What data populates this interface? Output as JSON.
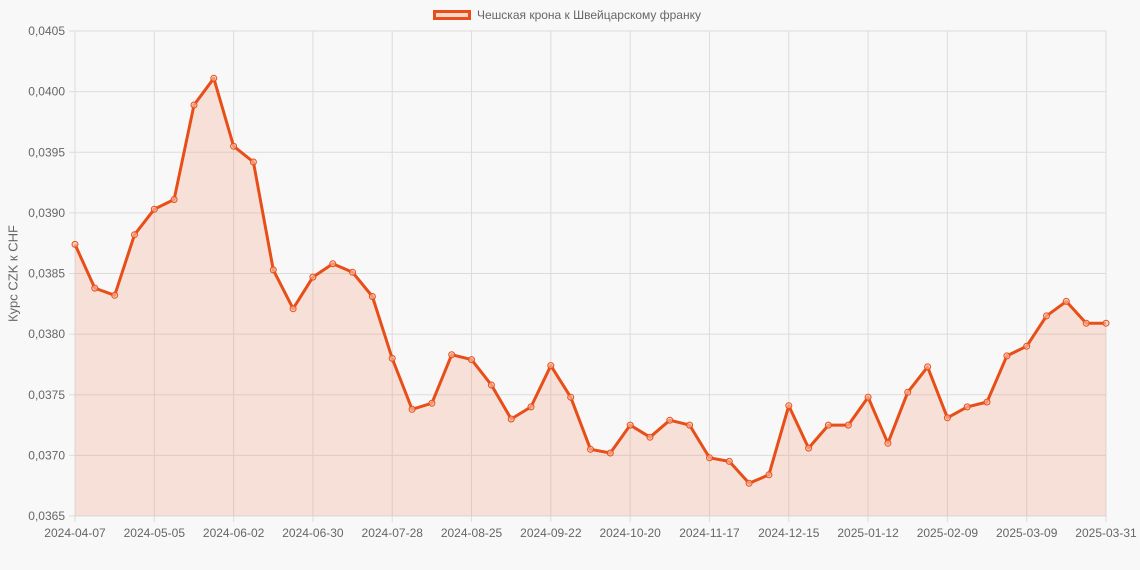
{
  "legend": {
    "label": "Чешская крона к Швейцарскому франку",
    "color": "#e84e17",
    "fill": "rgba(240,120,70,0.2)"
  },
  "chart_data": {
    "type": "line",
    "title": "",
    "xlabel": "",
    "ylabel": "Курс CZK к CHF",
    "ylim": [
      0.0365,
      0.0405
    ],
    "yticks": [
      "0,0405",
      "0,0400",
      "0,0395",
      "0,0390",
      "0,0385",
      "0,0380",
      "0,0375",
      "0,0370",
      "0,0365"
    ],
    "xtick_labels": [
      "2024-04-07",
      "2024-05-05",
      "2024-06-02",
      "2024-06-30",
      "2024-07-28",
      "2024-08-25",
      "2024-09-22",
      "2024-10-20",
      "2024-11-17",
      "2024-12-15",
      "2025-01-12",
      "2025-02-09",
      "2025-03-09",
      "2025-03-31"
    ],
    "xtick_indices": [
      0,
      4,
      8,
      12,
      16,
      20,
      24,
      28,
      32,
      36,
      40,
      44,
      48,
      52
    ],
    "grid": true,
    "legend_position": "top",
    "series": [
      {
        "name": "Чешская крона к Швейцарскому франку",
        "values": [
          0.03874,
          0.03838,
          0.03832,
          0.03882,
          0.03903,
          0.03911,
          0.03989,
          0.04011,
          0.03955,
          0.03942,
          0.03853,
          0.03821,
          0.03847,
          0.03858,
          0.03851,
          0.03831,
          0.0378,
          0.03738,
          0.03743,
          0.03783,
          0.03779,
          0.03758,
          0.0373,
          0.0374,
          0.03774,
          0.03748,
          0.03705,
          0.03702,
          0.03725,
          0.03715,
          0.03729,
          0.03725,
          0.03698,
          0.03695,
          0.03677,
          0.03684,
          0.03741,
          0.03706,
          0.03725,
          0.03725,
          0.03748,
          0.0371,
          0.03752,
          0.03773,
          0.03731,
          0.0374,
          0.03744,
          0.03782,
          0.0379,
          0.03815,
          0.03827,
          0.03809,
          0.03809
        ]
      }
    ]
  }
}
